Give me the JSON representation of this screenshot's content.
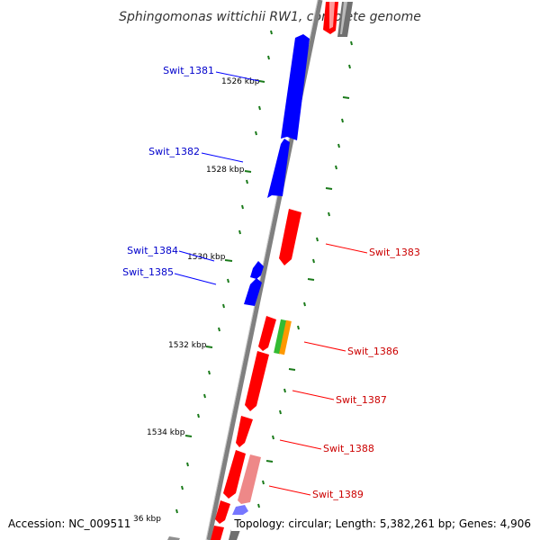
{
  "title": "Sphingomonas wittichii RW1, complete genome",
  "footer": {
    "accession": "Accession: NC_009511",
    "topology": "Topology: circular; Length: 5,382,261 bp; Genes: 4,906"
  },
  "colors": {
    "forward_gene": "#0000ff",
    "reverse_gene": "#ff0000",
    "rna_gene": "#33bb33",
    "other_feature": "#ff9900",
    "backbone": "#808080",
    "tick": "#1a7a1a"
  },
  "ticks": [
    {
      "label": "1526 kbp"
    },
    {
      "label": "1528 kbp"
    },
    {
      "label": "1530 kbp"
    },
    {
      "label": "1532 kbp"
    },
    {
      "label": "1534 kbp"
    },
    {
      "label": "36 kbp"
    }
  ],
  "forward_labels": [
    {
      "name": "Swit_1381"
    },
    {
      "name": "Swit_1382"
    },
    {
      "name": "Swit_1384"
    },
    {
      "name": "Swit_1385"
    }
  ],
  "reverse_labels": [
    {
      "name": "Swit_1383"
    },
    {
      "name": "Swit_1386"
    },
    {
      "name": "Swit_1387"
    },
    {
      "name": "Swit_1388"
    },
    {
      "name": "Swit_1389"
    }
  ]
}
